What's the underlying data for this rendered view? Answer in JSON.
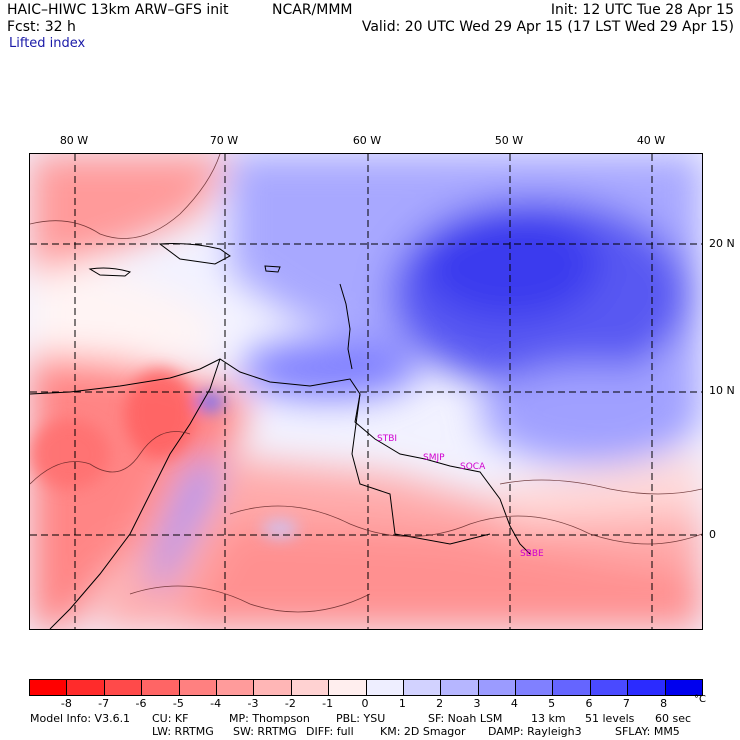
{
  "header": {
    "model_title": "HAIC–HIWC 13km ARW–GFS init",
    "org": "NCAR/MMM",
    "init": "Init: 12 UTC Tue 28 Apr 15",
    "fcst": "Fcst:    32 h",
    "valid": "Valid: 20 UTC Wed 29 Apr 15 (17 LST Wed 29 Apr 15)",
    "field_name": "Lifted index"
  },
  "map": {
    "lon_labels": [
      "80 W",
      "70 W",
      "60 W",
      "50 W",
      "40 W"
    ],
    "lat_labels": [
      "20 N",
      "10 N",
      "0"
    ],
    "stations": [
      "STBI",
      "SMJP",
      "SOCA",
      "SBBE"
    ]
  },
  "colorbar": {
    "colors": [
      "#ff0000",
      "#ff2b2b",
      "#ff4a4a",
      "#ff6565",
      "#ff8080",
      "#ff9b9b",
      "#ffb6b6",
      "#ffd2d2",
      "#ffeeee",
      "#eeeeff",
      "#d2d2ff",
      "#b6b6ff",
      "#9b9bff",
      "#8080ff",
      "#6565ff",
      "#4a4aff",
      "#2b2bff",
      "#0000ee"
    ],
    "ticks": [
      "-8",
      "-7",
      "-6",
      "-5",
      "-4",
      "-3",
      "-2",
      "-1",
      "0",
      "1",
      "2",
      "3",
      "4",
      "5",
      "6",
      "7",
      "8"
    ],
    "unit": "°C"
  },
  "footer": {
    "line1": [
      "Model Info: V3.6.1",
      "CU: KF",
      "MP: Thompson",
      "PBL: YSU",
      "SF: Noah LSM",
      "13 km",
      "51 levels",
      "60 sec"
    ],
    "line2": [
      "LW: RRTMG",
      "SW: RRTMG",
      "DIFF: full",
      "KM: 2D Smagor",
      "DAMP: Rayleigh3",
      "SFLAY: MM5"
    ]
  }
}
